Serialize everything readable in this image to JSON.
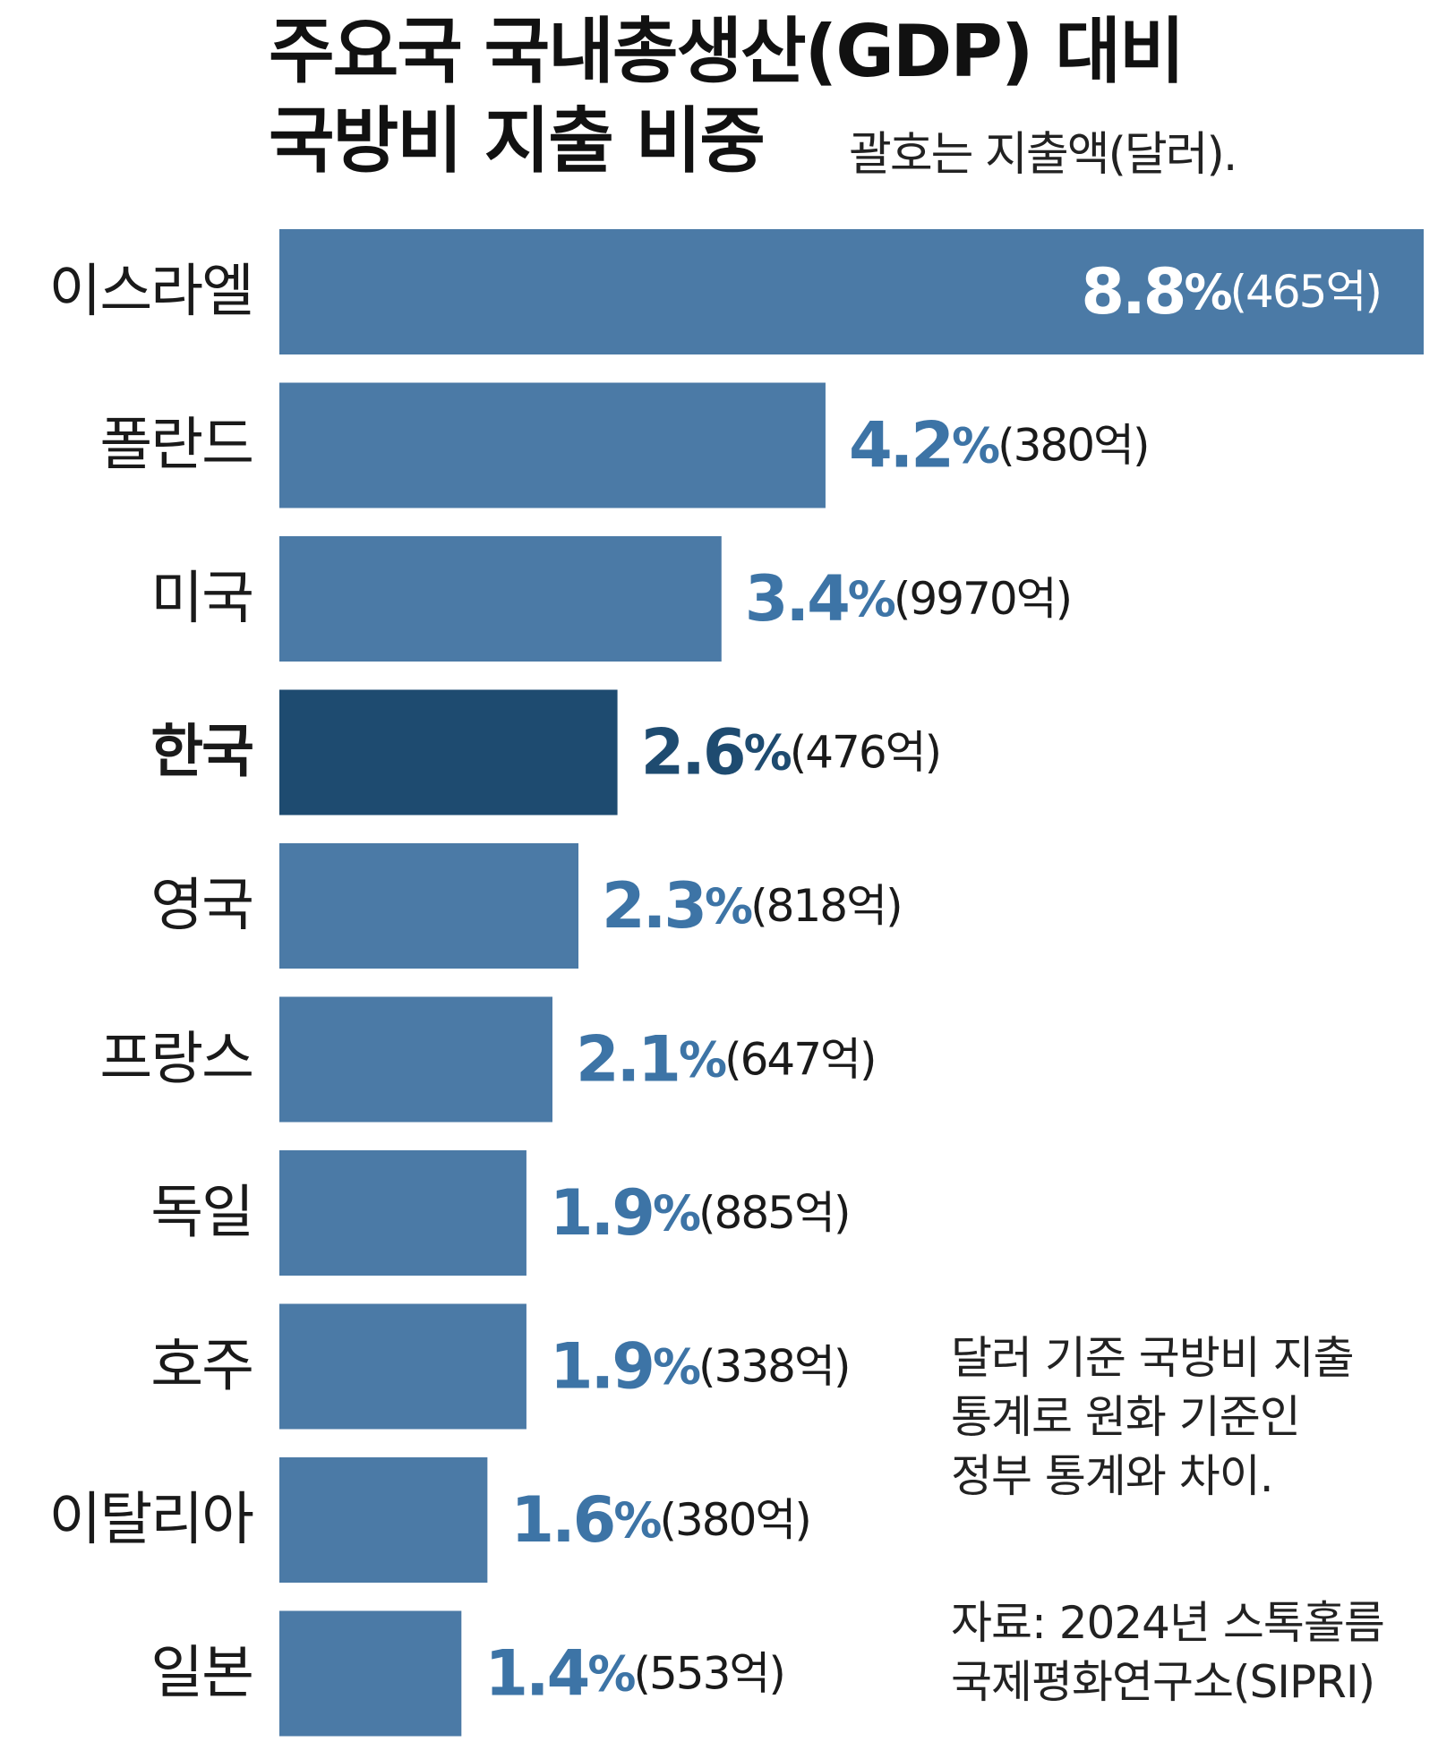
{
  "title": {
    "line1": "주요국 국내총생산(GDP) 대비",
    "line2": "국방비 지출 비중"
  },
  "subtitle": "괄호는 지출액(달러).",
  "note": [
    "달러 기준 국방비 지출",
    "통계로 원화 기준인",
    "정부 통계와 차이."
  ],
  "source": [
    "자료: 2024년 스톡홀름",
    "국제평화연구소(SIPRI)"
  ],
  "colors": {
    "bar": "#4b7aa6",
    "highlight": "#1e4b70",
    "value_text": "#3d74a6",
    "highlight_text": "#1e4b70"
  },
  "chart_data": {
    "type": "bar",
    "orientation": "horizontal",
    "title": "주요국 국내총생산(GDP) 대비 국방비 지출 비중",
    "categories": [
      "이스라엘",
      "폴란드",
      "미국",
      "한국",
      "영국",
      "프랑스",
      "독일",
      "호주",
      "이탈리아",
      "일본"
    ],
    "values": [
      8.8,
      4.2,
      3.4,
      2.6,
      2.3,
      2.1,
      1.9,
      1.9,
      1.6,
      1.4
    ],
    "value_labels": [
      "8.8",
      "4.2",
      "3.4",
      "2.6",
      "2.3",
      "2.1",
      "1.9",
      "1.9",
      "1.6",
      "1.4"
    ],
    "unit": "%",
    "amounts": [
      "(465억)",
      "(380억)",
      "(9970억)",
      "(476억)",
      "(818억)",
      "(647억)",
      "(885억)",
      "(338억)",
      "(380억)",
      "(553억)"
    ],
    "highlight": "한국",
    "xlim": [
      0,
      8.8
    ],
    "grid": false
  }
}
